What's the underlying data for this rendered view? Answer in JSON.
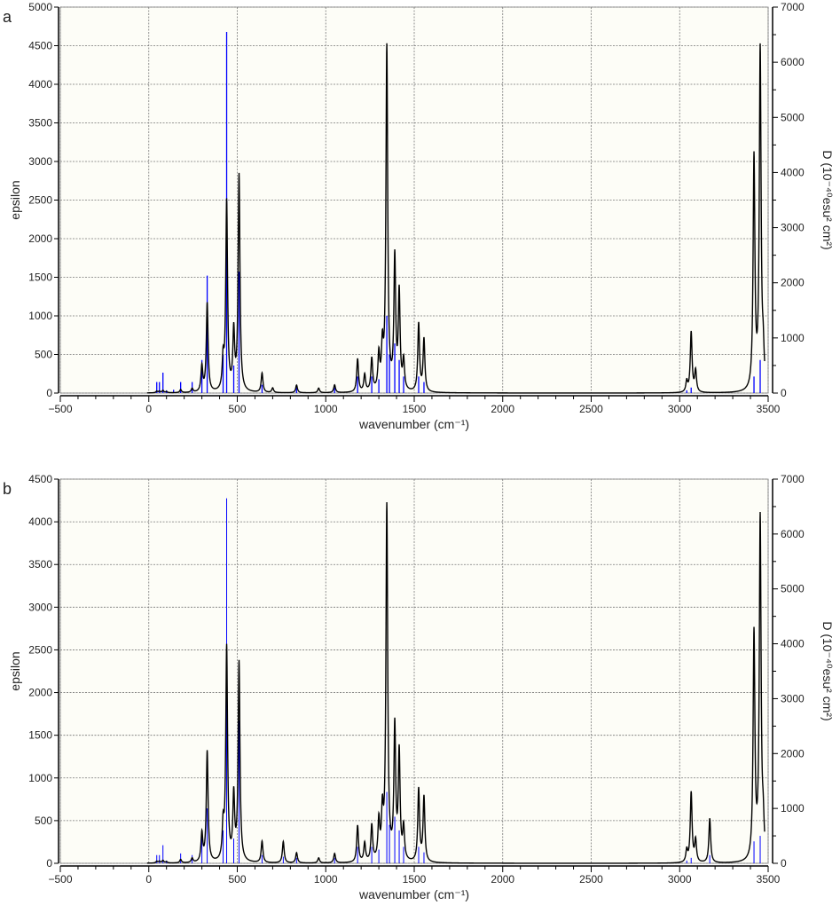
{
  "chart_data": [
    {
      "panel_label": "a",
      "type": "line",
      "xlabel": "wavenumber (cm⁻¹)",
      "ylabel": "epsilon",
      "y2label": "D (10⁻⁴⁰esu² cm²)",
      "xlim": [
        -500,
        3500
      ],
      "ylim": [
        0,
        5000
      ],
      "y2lim": [
        0,
        7000
      ],
      "xticks": [
        "-500",
        "0",
        "500",
        "1000",
        "1500",
        "2000",
        "2500",
        "3000",
        "3500"
      ],
      "yticks": [
        "0",
        "500",
        "1000",
        "1500",
        "2000",
        "2500",
        "3000",
        "3500",
        "4000",
        "4500",
        "5000"
      ],
      "y2ticks": [
        "0",
        "1000",
        "2000",
        "3000",
        "4000",
        "5000",
        "6000",
        "7000"
      ],
      "grid": true,
      "series": [
        {
          "name": "epsilon",
          "color": "#000000",
          "axis": "left",
          "peaks": [
            [
              45,
              20
            ],
            [
              60,
              20
            ],
            [
              80,
              30
            ],
            [
              100,
              15
            ],
            [
              180,
              40
            ],
            [
              245,
              50
            ],
            [
              300,
              330
            ],
            [
              330,
              1150
            ],
            [
              420,
              380
            ],
            [
              440,
              2450
            ],
            [
              480,
              750
            ],
            [
              510,
              2800
            ],
            [
              640,
              250
            ],
            [
              700,
              60
            ],
            [
              835,
              100
            ],
            [
              960,
              60
            ],
            [
              1050,
              100
            ],
            [
              1180,
              430
            ],
            [
              1220,
              220
            ],
            [
              1260,
              420
            ],
            [
              1300,
              450
            ],
            [
              1320,
              520
            ],
            [
              1345,
              4450
            ],
            [
              1390,
              1700
            ],
            [
              1415,
              1250
            ],
            [
              1440,
              380
            ],
            [
              1525,
              880
            ],
            [
              1555,
              680
            ],
            [
              3040,
              140
            ],
            [
              3065,
              780
            ],
            [
              3090,
              280
            ],
            [
              3420,
              3000
            ],
            [
              3455,
              4400
            ],
            [
              3472,
              400
            ]
          ]
        },
        {
          "name": "D",
          "color": "#0000ff",
          "axis": "right",
          "sticks": [
            [
              45,
              200
            ],
            [
              60,
              200
            ],
            [
              80,
              370
            ],
            [
              100,
              50
            ],
            [
              140,
              60
            ],
            [
              180,
              200
            ],
            [
              245,
              200
            ],
            [
              300,
              600
            ],
            [
              330,
              2130
            ],
            [
              420,
              700
            ],
            [
              440,
              6550
            ],
            [
              480,
              500
            ],
            [
              510,
              2200
            ],
            [
              640,
              150
            ],
            [
              835,
              100
            ],
            [
              1050,
              100
            ],
            [
              1180,
              300
            ],
            [
              1260,
              300
            ],
            [
              1300,
              250
            ],
            [
              1345,
              1400
            ],
            [
              1360,
              700
            ],
            [
              1390,
              900
            ],
            [
              1415,
              600
            ],
            [
              1440,
              300
            ],
            [
              1525,
              300
            ],
            [
              1555,
              200
            ],
            [
              3040,
              50
            ],
            [
              3065,
              100
            ],
            [
              3420,
              300
            ],
            [
              3455,
              600
            ]
          ]
        }
      ]
    },
    {
      "panel_label": "b",
      "type": "line",
      "xlabel": "wavenumber (cm⁻¹)",
      "ylabel": "epsilon",
      "y2label": "D (10⁻⁴⁰esu² cm²)",
      "xlim": [
        -500,
        3500
      ],
      "ylim": [
        0,
        4500
      ],
      "y2lim": [
        0,
        7000
      ],
      "xticks": [
        "-500",
        "0",
        "500",
        "1000",
        "1500",
        "2000",
        "2500",
        "3000",
        "3500"
      ],
      "yticks": [
        "0",
        "500",
        "1000",
        "1500",
        "2000",
        "2500",
        "3000",
        "3500",
        "4000",
        "4500"
      ],
      "y2ticks": [
        "0",
        "1000",
        "2000",
        "3000",
        "4000",
        "5000",
        "6000",
        "7000"
      ],
      "grid": true,
      "series": [
        {
          "name": "epsilon",
          "color": "#000000",
          "axis": "left",
          "peaks": [
            [
              45,
              20
            ],
            [
              60,
              20
            ],
            [
              80,
              30
            ],
            [
              100,
              15
            ],
            [
              180,
              40
            ],
            [
              245,
              50
            ],
            [
              300,
              330
            ],
            [
              330,
              1300
            ],
            [
              420,
              380
            ],
            [
              440,
              2500
            ],
            [
              480,
              750
            ],
            [
              510,
              2330
            ],
            [
              640,
              250
            ],
            [
              760,
              250
            ],
            [
              835,
              120
            ],
            [
              960,
              60
            ],
            [
              1050,
              110
            ],
            [
              1180,
              430
            ],
            [
              1220,
              220
            ],
            [
              1260,
              420
            ],
            [
              1300,
              450
            ],
            [
              1320,
              520
            ],
            [
              1345,
              4150
            ],
            [
              1390,
              1550
            ],
            [
              1415,
              1250
            ],
            [
              1440,
              380
            ],
            [
              1525,
              850
            ],
            [
              1555,
              760
            ],
            [
              3040,
              140
            ],
            [
              3065,
              820
            ],
            [
              3090,
              260
            ],
            [
              3170,
              520
            ],
            [
              3420,
              2650
            ],
            [
              3455,
              4000
            ],
            [
              3472,
              350
            ]
          ]
        },
        {
          "name": "D",
          "color": "#0000ff",
          "axis": "right",
          "sticks": [
            [
              45,
              150
            ],
            [
              60,
              150
            ],
            [
              80,
              330
            ],
            [
              100,
              50
            ],
            [
              180,
              180
            ],
            [
              245,
              150
            ],
            [
              300,
              500
            ],
            [
              330,
              1000
            ],
            [
              420,
              600
            ],
            [
              440,
              6650
            ],
            [
              480,
              450
            ],
            [
              510,
              2600
            ],
            [
              640,
              150
            ],
            [
              760,
              120
            ],
            [
              835,
              100
            ],
            [
              1050,
              100
            ],
            [
              1180,
              300
            ],
            [
              1260,
              300
            ],
            [
              1300,
              250
            ],
            [
              1345,
              1300
            ],
            [
              1360,
              700
            ],
            [
              1390,
              850
            ],
            [
              1415,
              600
            ],
            [
              1440,
              300
            ],
            [
              1525,
              300
            ],
            [
              1555,
              200
            ],
            [
              3040,
              50
            ],
            [
              3065,
              100
            ],
            [
              3170,
              150
            ],
            [
              3420,
              400
            ],
            [
              3455,
              500
            ]
          ]
        }
      ]
    }
  ]
}
